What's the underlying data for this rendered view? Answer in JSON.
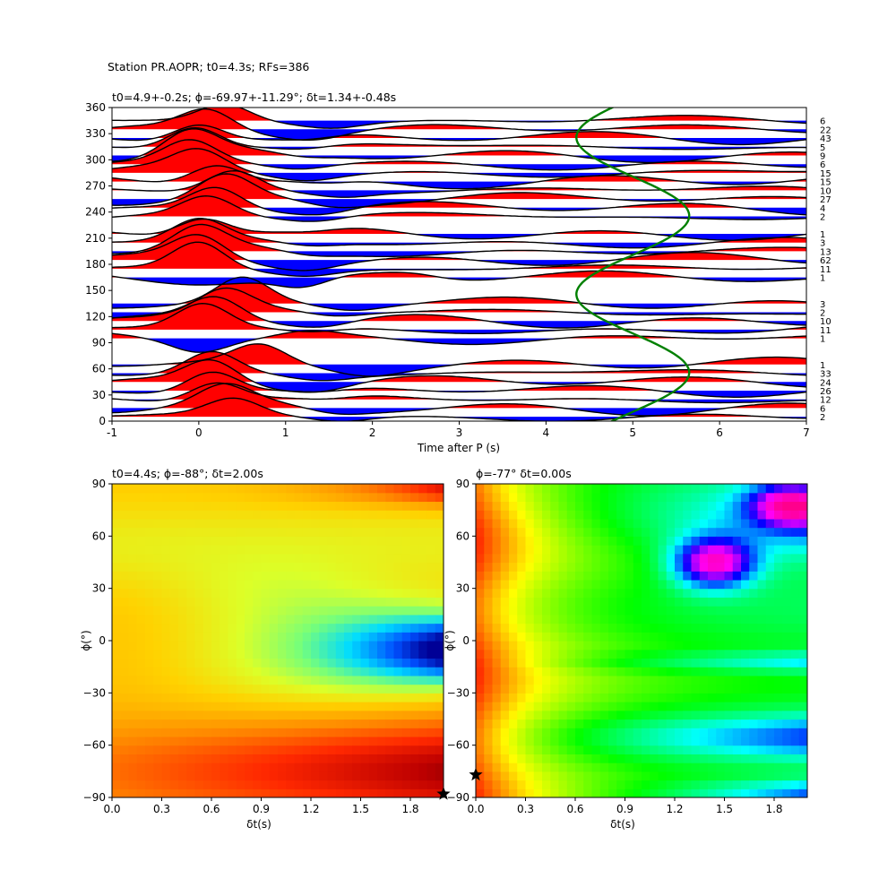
{
  "suptitle": "Station PR.AOPR; t0=4.3s; RFs=386",
  "chart_data": [
    {
      "type": "line",
      "panel": "receiver-function-traces",
      "title": "t0=4.9+-0.2s; ϕ=-69.97+-11.29°; δt=1.34+-0.48s",
      "xlabel": "Time after P (s)",
      "ylabel": "",
      "xlim": [
        -1,
        7
      ],
      "ylim": [
        0,
        360
      ],
      "xticks": [
        -1,
        0,
        1,
        2,
        3,
        4,
        5,
        6,
        7
      ],
      "yticks": [
        0,
        30,
        60,
        90,
        120,
        150,
        180,
        210,
        240,
        270,
        300,
        330,
        360
      ],
      "fill_positive_color": "#ff0000",
      "fill_negative_color": "#0000ff",
      "trace_color": "#000000",
      "fit_curve_color": "#008000",
      "fit_curve": {
        "description": "predicted split-time vs back-azimuth",
        "center": 5.0,
        "amplitude": 0.65,
        "x_at_y": [
          [
            0,
            5.48
          ],
          [
            30,
            5.6
          ],
          [
            60,
            4.95
          ],
          [
            90,
            4.3
          ],
          [
            110,
            4.3
          ],
          [
            150,
            4.95
          ],
          [
            195,
            5.62
          ],
          [
            240,
            5.0
          ],
          [
            285,
            4.3
          ],
          [
            320,
            4.65
          ],
          [
            360,
            5.45
          ]
        ]
      },
      "traces": [
        {
          "baz": 5,
          "count": "2",
          "peak_t": 0.4,
          "peak_amp": 1.9,
          "label": "2"
        },
        {
          "baz": 15,
          "count": "6",
          "peak_t": 0.3,
          "peak_amp": 2.1,
          "label": "6"
        },
        {
          "baz": 25,
          "count": "12",
          "peak_t": 0.2,
          "peak_amp": 2.3,
          "label": "12"
        },
        {
          "baz": 35,
          "count": "26",
          "peak_t": 0.15,
          "peak_amp": 2.6,
          "label": "26"
        },
        {
          "baz": 45,
          "count": "24",
          "peak_t": 0.15,
          "peak_amp": 2.7,
          "label": "24"
        },
        {
          "baz": 55,
          "count": "33",
          "peak_t": 0.15,
          "peak_amp": 2.6,
          "label": "33"
        },
        {
          "baz": 65,
          "count": "1",
          "peak_t": 0.7,
          "peak_amp": 2.1,
          "label": "1"
        },
        {
          "baz": 95,
          "count": "1",
          "peak_t": 0.0,
          "peak_amp": -1.3,
          "label": "1"
        },
        {
          "baz": 105,
          "count": "11",
          "peak_t": 0.05,
          "peak_amp": 2.9,
          "label": "11"
        },
        {
          "baz": 115,
          "count": "10",
          "peak_t": 0.2,
          "peak_amp": 2.6,
          "label": "10"
        },
        {
          "baz": 125,
          "count": "2",
          "peak_t": 0.3,
          "peak_amp": 2.5,
          "label": "2"
        },
        {
          "baz": 135,
          "count": "3",
          "peak_t": 0.5,
          "peak_amp": 2.9,
          "label": "3"
        },
        {
          "baz": 165,
          "count": "1",
          "peak_t": 1.2,
          "peak_amp": -1.4,
          "label": "1"
        },
        {
          "baz": 175,
          "count": "11",
          "peak_t": 0.0,
          "peak_amp": 3.2,
          "label": "11"
        },
        {
          "baz": 185,
          "count": "62",
          "peak_t": 0.0,
          "peak_amp": 2.7,
          "label": "62"
        },
        {
          "baz": 195,
          "count": "13",
          "peak_t": 0.0,
          "peak_amp": 2.7,
          "label": "13"
        },
        {
          "baz": 205,
          "count": "3",
          "peak_t": 0.0,
          "peak_amp": 2.5,
          "label": "3"
        },
        {
          "baz": 215,
          "count": "1",
          "peak_t": 0.05,
          "peak_amp": 2.2,
          "label": "1"
        },
        {
          "baz": 235,
          "count": "2",
          "peak_t": 0.1,
          "peak_amp": 2.3,
          "label": "2"
        },
        {
          "baz": 245,
          "count": "4",
          "peak_t": 0.2,
          "peak_amp": 2.6,
          "label": "4"
        },
        {
          "baz": 255,
          "count": "27",
          "peak_t": 0.3,
          "peak_amp": 2.7,
          "label": "27"
        },
        {
          "baz": 265,
          "count": "10",
          "peak_t": 0.4,
          "peak_amp": 2.5,
          "label": "10"
        },
        {
          "baz": 275,
          "count": "15",
          "peak_t": 0.2,
          "peak_amp": 2.3,
          "label": "15"
        },
        {
          "baz": 285,
          "count": "15",
          "peak_t": 0.0,
          "peak_amp": 2.3,
          "label": "15"
        },
        {
          "baz": 295,
          "count": "6",
          "peak_t": -0.1,
          "peak_amp": 2.5,
          "label": "6"
        },
        {
          "baz": 305,
          "count": "9",
          "peak_t": -0.1,
          "peak_amp": 2.8,
          "label": "9"
        },
        {
          "baz": 315,
          "count": "5",
          "peak_t": -0.05,
          "peak_amp": 2.6,
          "label": "5"
        },
        {
          "baz": 325,
          "count": "43",
          "peak_t": 0.0,
          "peak_amp": 2.2,
          "label": "43"
        },
        {
          "baz": 335,
          "count": "22",
          "peak_t": 0.1,
          "peak_amp": 2.4,
          "label": "22"
        },
        {
          "baz": 345,
          "count": "6",
          "peak_t": 0.3,
          "peak_amp": 2.0,
          "label": "6"
        }
      ]
    },
    {
      "type": "heatmap",
      "panel": "energy-grid-left",
      "title": "t0=4.4s; ϕ=-88°; δt=2.00s",
      "xlabel": "δt(s)",
      "ylabel": "ϕ(°)",
      "xlim": [
        0,
        2.0
      ],
      "ylim": [
        -90,
        90
      ],
      "xticks": [
        "0.0",
        "0.3",
        "0.6",
        "0.9",
        "1.2",
        "1.5",
        "1.8"
      ],
      "yticks": [
        "−90",
        "−60",
        "−30",
        "0",
        "30",
        "60",
        "90"
      ],
      "colormap": "hot-to-cool (black, red, orange, yellow, green, cyan, blue)",
      "marker": {
        "dt": 2.0,
        "phi": -88,
        "symbol": "star"
      },
      "minimum_region": {
        "dt": 1.9,
        "phi": -5,
        "color": "blue"
      }
    },
    {
      "type": "heatmap",
      "panel": "energy-grid-right",
      "title": "ϕ=-77° δt=0.00s",
      "xlabel": "δt(s)",
      "ylabel": "ϕ(°)",
      "xlim": [
        0,
        2.0
      ],
      "ylim": [
        -90,
        90
      ],
      "xticks": [
        "0.0",
        "0.3",
        "0.6",
        "0.9",
        "1.2",
        "1.5",
        "1.8"
      ],
      "yticks": [
        "−90",
        "−60",
        "−30",
        "0",
        "30",
        "60",
        "90"
      ],
      "colormap": "hsv (red, yellow, green, cyan, blue, magenta)",
      "marker": {
        "dt": 0.0,
        "phi": -77,
        "symbol": "star"
      },
      "maximum_region": {
        "dt": 1.45,
        "phi": 45,
        "color": "magenta"
      }
    }
  ]
}
